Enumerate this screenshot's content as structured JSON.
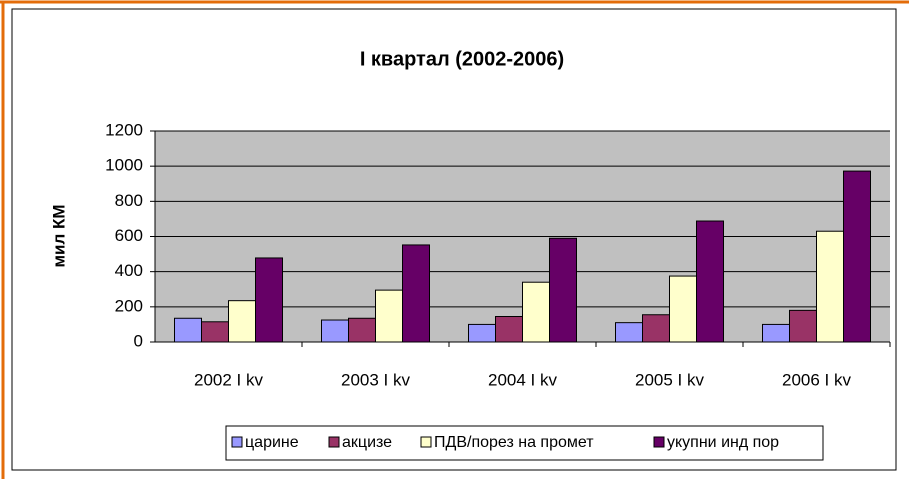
{
  "chart_data": {
    "type": "bar",
    "title": "I квартал (2002-2006)",
    "y_label": "мил КМ",
    "categories": [
      "2002 I kv",
      "2003 I kv",
      "2004 I kv",
      "2005 I kv",
      "2006 I kv"
    ],
    "series": [
      {
        "name": "царине",
        "color": "#9999ff",
        "values": [
          135,
          125,
          100,
          110,
          100
        ]
      },
      {
        "name": "акцизе",
        "color": "#993366",
        "values": [
          115,
          135,
          145,
          155,
          180
        ]
      },
      {
        "name": "ПДВ/порез на промет",
        "color": "#ffffcc",
        "values": [
          235,
          295,
          340,
          375,
          630
        ]
      },
      {
        "name": "укупни инд пор",
        "color": "#660066",
        "values": [
          478,
          552,
          590,
          688,
          972
        ]
      }
    ],
    "ylim": [
      0,
      1200
    ],
    "yticks": [
      0,
      200,
      400,
      600,
      800,
      1000,
      1200
    ],
    "grid": true
  }
}
